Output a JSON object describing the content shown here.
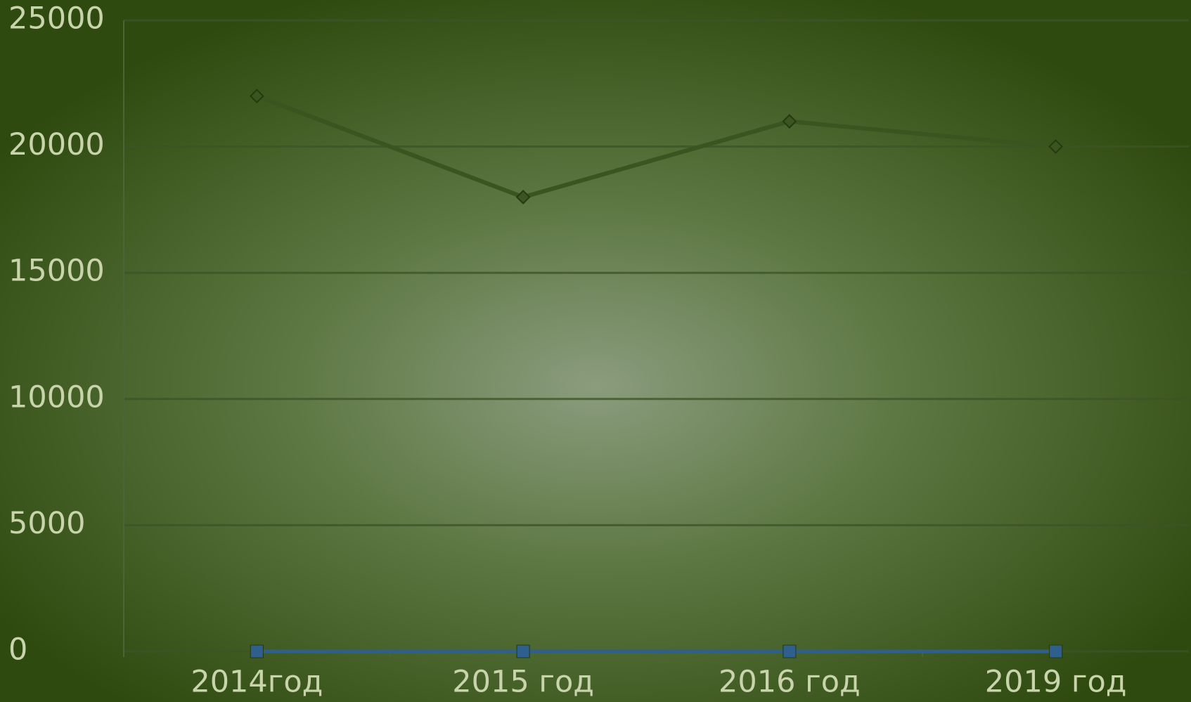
{
  "chart_data": {
    "type": "line",
    "categories": [
      "2014год",
      "2015 год",
      "2016 год",
      "2019 год"
    ],
    "series": [
      {
        "color": "#3a5520",
        "marker": "diamond",
        "values": [
          22000,
          18000,
          21000,
          20000
        ]
      },
      {
        "color": "#8a2b3f",
        "marker": "square",
        "values": [
          0,
          0,
          0,
          0
        ]
      },
      {
        "color": "#2f5f8c",
        "marker": "square",
        "values": [
          0,
          0,
          0,
          0
        ]
      }
    ],
    "ylim": [
      0,
      25000
    ],
    "yticks": [
      0,
      5000,
      10000,
      15000,
      20000,
      25000
    ],
    "grid": true
  }
}
